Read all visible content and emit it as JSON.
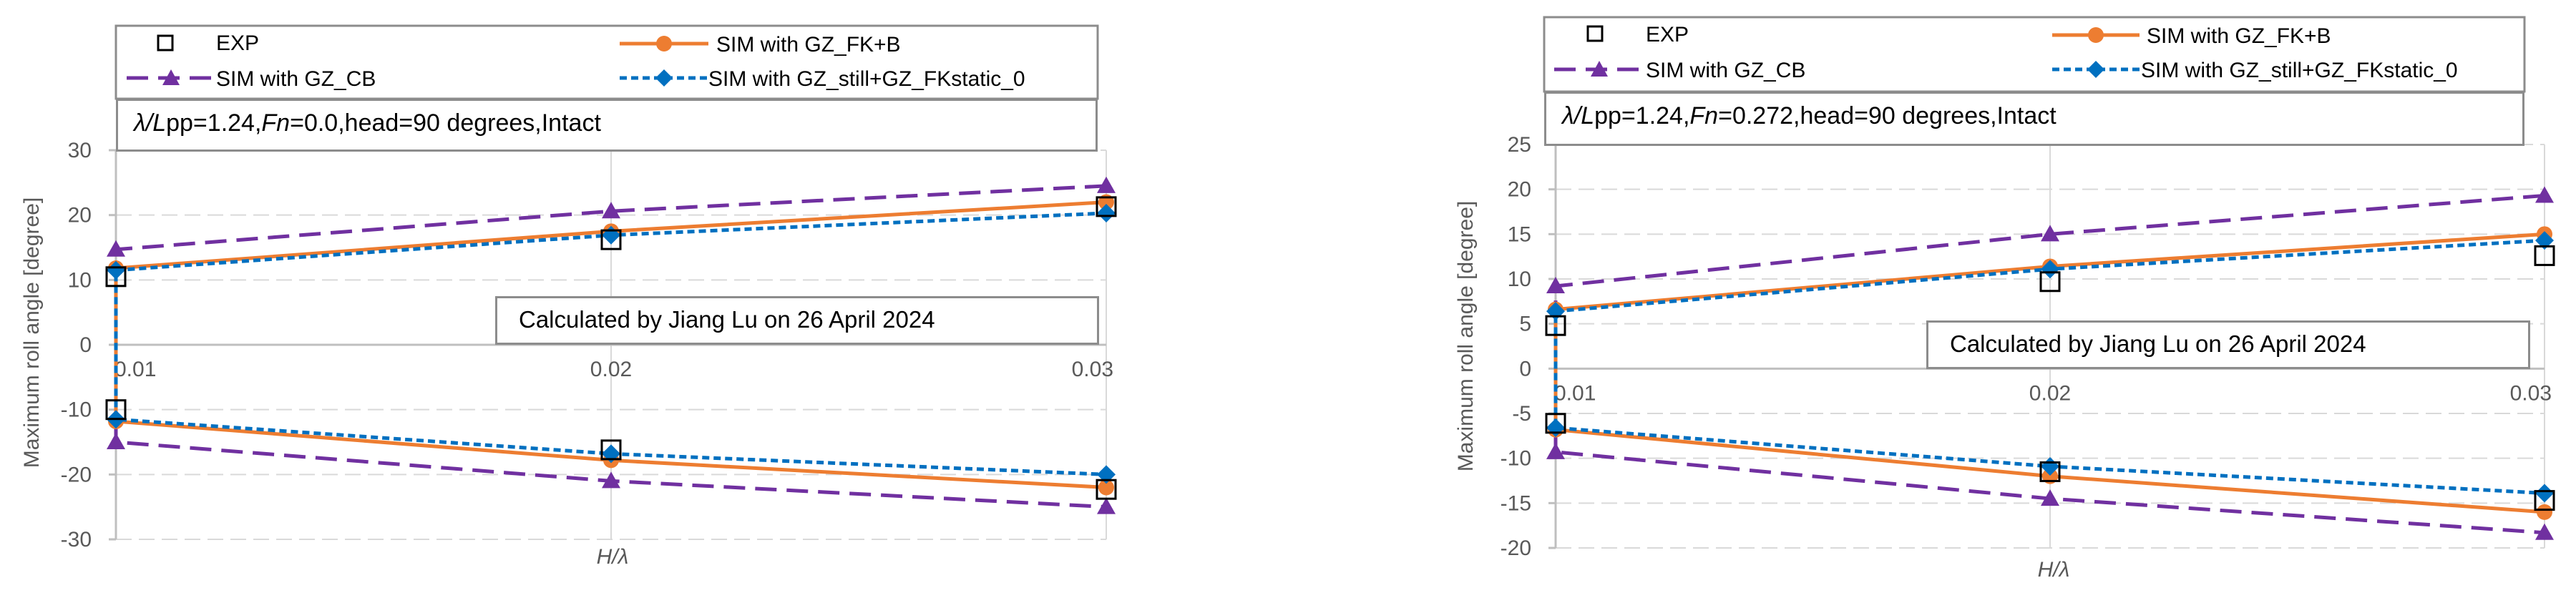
{
  "legend": {
    "exp": "EXP",
    "fk_b": "SIM with GZ_FK+B",
    "cb": "SIM with GZ_CB",
    "still": "SIM with GZ_still+GZ_FKstatic_0"
  },
  "colors": {
    "exp": "#000000",
    "fk_b": "#ED7D31",
    "cb": "#7030A0",
    "still": "#0070C0"
  },
  "chart_data": [
    {
      "type": "line",
      "condition_prefix": "λ/",
      "condition_lpp": "L",
      "condition_mid1": "pp=1.24,",
      "condition_fn": "Fn",
      "condition_rest": "=0.0,head=90 degrees,Intact",
      "annotation": "Calculated by Jiang Lu on 26 April 2024",
      "xlabel": "H/λ",
      "ylabel": "Maximum roll angle [degree]",
      "xlim": [
        0.01,
        0.03
      ],
      "ylim": [
        -30,
        30
      ],
      "x_ticks": [
        0.01,
        0.02,
        0.03
      ],
      "x_tick_labels": [
        "0.01",
        "0.02",
        "0.03"
      ],
      "y_ticks": [
        -30,
        -20,
        -10,
        0,
        10,
        20,
        30
      ],
      "y_tick_labels": [
        "-30",
        "-20",
        "-10",
        "0",
        "10",
        "20",
        "30"
      ],
      "x": [
        0.01,
        0.02,
        0.03
      ],
      "series": [
        {
          "name": "EXP",
          "upper": [
            10.5,
            16.2,
            21.3
          ],
          "lower": [
            -10.0,
            -16.2,
            -22.3
          ]
        },
        {
          "name": "SIM with GZ_FK+B",
          "upper": [
            11.8,
            17.5,
            22.0
          ],
          "lower": [
            -11.8,
            -17.8,
            -22.0
          ]
        },
        {
          "name": "SIM with GZ_CB",
          "upper": [
            14.7,
            20.6,
            24.5
          ],
          "lower": [
            -15.0,
            -21.0,
            -25.0
          ]
        },
        {
          "name": "SIM with GZ_still+GZ_FKstatic_0",
          "upper": [
            11.5,
            16.9,
            20.3
          ],
          "lower": [
            -11.5,
            -16.8,
            -20.0
          ]
        }
      ]
    },
    {
      "type": "line",
      "condition_prefix": "λ/",
      "condition_lpp": "L",
      "condition_mid1": "pp=1.24,",
      "condition_fn": "Fn",
      "condition_rest": "=0.272,head=90 degrees,Intact",
      "annotation": "Calculated by Jiang Lu on 26 April 2024",
      "xlabel": "H/λ",
      "ylabel": "Maximum roll angle [degree]",
      "xlim": [
        0.01,
        0.03
      ],
      "ylim": [
        -20,
        25
      ],
      "x_ticks": [
        0.01,
        0.02,
        0.03
      ],
      "x_tick_labels": [
        "0.01",
        "0.02",
        "0.03"
      ],
      "y_ticks": [
        -20,
        -15,
        -10,
        -5,
        0,
        5,
        10,
        15,
        20,
        25
      ],
      "y_tick_labels": [
        "-20",
        "-15",
        "-10",
        "-5",
        "0",
        "5",
        "10",
        "15",
        "20",
        "25"
      ],
      "x": [
        0.01,
        0.02,
        0.03
      ],
      "series": [
        {
          "name": "EXP",
          "upper": [
            4.8,
            9.7,
            12.6
          ],
          "lower": [
            -6.1,
            -11.5,
            -14.7
          ]
        },
        {
          "name": "SIM with GZ_FK+B",
          "upper": [
            6.6,
            11.4,
            15.0
          ],
          "lower": [
            -6.8,
            -12.0,
            -16.0
          ]
        },
        {
          "name": "SIM with GZ_CB",
          "upper": [
            9.2,
            15.0,
            19.3
          ],
          "lower": [
            -9.3,
            -14.5,
            -18.3
          ]
        },
        {
          "name": "SIM with GZ_still+GZ_FKstatic_0",
          "upper": [
            6.4,
            11.1,
            14.3
          ],
          "lower": [
            -6.6,
            -10.9,
            -13.9
          ]
        }
      ]
    }
  ]
}
